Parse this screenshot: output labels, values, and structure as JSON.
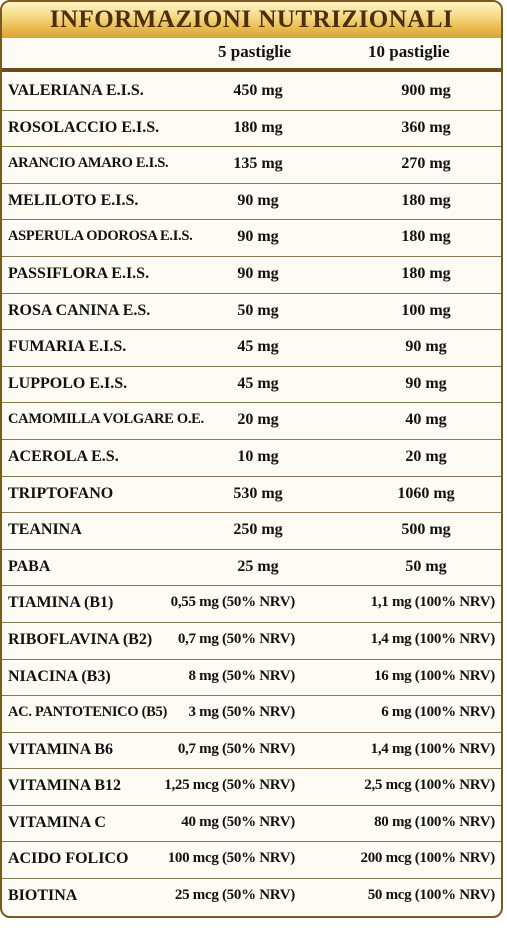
{
  "title": "INFORMAZIONI NUTRIZIONALI",
  "columns": {
    "col1": "5 pastiglie",
    "col2": "10 pastiglie"
  },
  "rows": [
    {
      "name": "VALERIANA E.I.S.",
      "v1": "450 mg",
      "v2": "900 mg"
    },
    {
      "name": "ROSOLACCIO E.I.S.",
      "v1": "180 mg",
      "v2": "360 mg"
    },
    {
      "name": "ARANCIO AMARO E.I.S.",
      "v1": "135 mg",
      "v2": "270 mg"
    },
    {
      "name": "MELILOTO E.I.S.",
      "v1": "90 mg",
      "v2": "180 mg"
    },
    {
      "name": "ASPERULA ODOROSA E.I.S.",
      "v1": "90 mg",
      "v2": "180 mg"
    },
    {
      "name": "PASSIFLORA E.I.S.",
      "v1": "90 mg",
      "v2": "180 mg"
    },
    {
      "name": "ROSA CANINA E.S.",
      "v1": "50 mg",
      "v2": "100 mg"
    },
    {
      "name": "FUMARIA E.I.S.",
      "v1": "45 mg",
      "v2": "90 mg"
    },
    {
      "name": "LUPPOLO E.I.S.",
      "v1": "45 mg",
      "v2": "90 mg"
    },
    {
      "name": "CAMOMILLA VOLGARE O.E.",
      "v1": "20 mg",
      "v2": "40 mg"
    },
    {
      "name": "ACEROLA E.S.",
      "v1": "10 mg",
      "v2": "20 mg"
    },
    {
      "name": "TRIPTOFANO",
      "v1": "530 mg",
      "v2": "1060 mg"
    },
    {
      "name": "TEANINA",
      "v1": "250 mg",
      "v2": "500 mg"
    },
    {
      "name": "PABA",
      "v1": "25 mg",
      "v2": "50 mg"
    },
    {
      "name": "TIAMINA (B1)",
      "v1": "0,55 mg (50% NRV)",
      "v2": "1,1 mg (100% NRV)"
    },
    {
      "name": "RIBOFLAVINA (B2)",
      "v1": "0,7 mg (50% NRV)",
      "v2": "1,4 mg (100% NRV)"
    },
    {
      "name": "NIACINA (B3)",
      "v1": "8 mg (50% NRV)",
      "v2": "16 mg (100% NRV)"
    },
    {
      "name": "AC. PANTOTENICO (B5)",
      "v1": "3 mg (50% NRV)",
      "v2": "6 mg (100% NRV)"
    },
    {
      "name": "VITAMINA B6",
      "v1": "0,7 mg (50% NRV)",
      "v2": "1,4 mg (100% NRV)"
    },
    {
      "name": "VITAMINA B12",
      "v1": "1,25 mcg (50% NRV)",
      "v2": "2,5 mcg (100% NRV)"
    },
    {
      "name": "VITAMINA C",
      "v1": "40 mg (50% NRV)",
      "v2": "80 mg (100% NRV)"
    },
    {
      "name": "ACIDO FOLICO",
      "v1": "100 mcg (50% NRV)",
      "v2": "200 mcg (100% NRV)"
    },
    {
      "name": "BIOTINA",
      "v1": "25 mcg (50% NRV)",
      "v2": "50 mcg (100% NRV)"
    }
  ]
}
